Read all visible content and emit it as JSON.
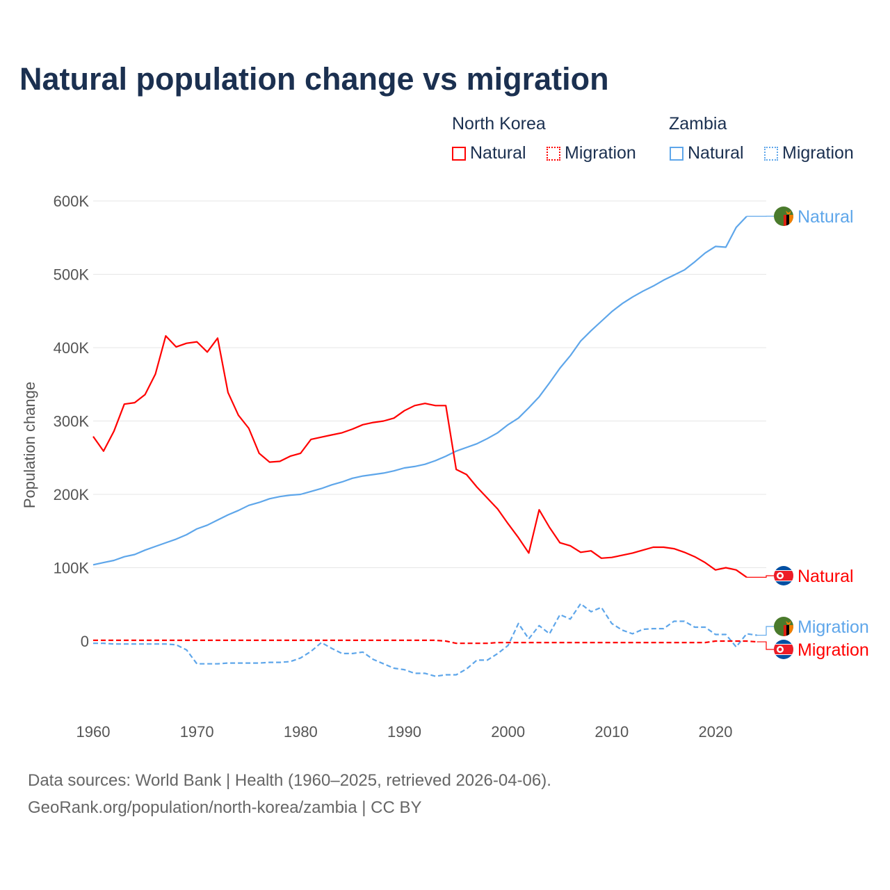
{
  "title": "Natural population change vs migration",
  "legend": {
    "groups": [
      {
        "country": "North Korea",
        "items": [
          "Natural",
          "Migration"
        ],
        "color": "#ff0000"
      },
      {
        "country": "Zambia",
        "items": [
          "Natural",
          "Migration"
        ],
        "color": "#5ea6ea"
      }
    ]
  },
  "footer": {
    "line1": "Data sources: World Bank | Health (1960–2025, retrieved 2026-04-06).",
    "line2": "GeoRank.org/population/north-korea/zambia | CC BY"
  },
  "chart_data": {
    "type": "line",
    "title": "Natural population change vs migration",
    "xlabel": "",
    "ylabel": "Population change",
    "xlim": [
      1960,
      2025
    ],
    "ylim": [
      -95000,
      620000
    ],
    "xticks": [
      1960,
      1970,
      1980,
      1990,
      2000,
      2010,
      2020
    ],
    "xtick_labels": [
      "1960",
      "1970",
      "1980",
      "1990",
      "2000",
      "2010",
      "2020"
    ],
    "yticks": [
      0,
      100000,
      200000,
      300000,
      400000,
      500000,
      600000
    ],
    "ytick_labels": [
      "0",
      "100K",
      "200K",
      "300K",
      "400K",
      "500K",
      "600K"
    ],
    "grid": true,
    "series": [
      {
        "name": "North Korea Natural",
        "label": "Natural",
        "country": "north-korea",
        "dash": "solid",
        "color": "#ff0000",
        "start": 1960,
        "values": [
          279000,
          259000,
          286000,
          323000,
          325000,
          336000,
          364000,
          416000,
          401000,
          406000,
          408000,
          394000,
          413000,
          339000,
          308000,
          290000,
          256000,
          244000,
          245000,
          252000,
          256000,
          275000,
          278000,
          281000,
          284000,
          289000,
          295000,
          298000,
          300000,
          304000,
          314000,
          321000,
          324000,
          321000,
          321000,
          234000,
          227000,
          210000,
          195000,
          180000,
          160000,
          141000,
          120000,
          179000,
          155000,
          134000,
          130000,
          121000,
          123000,
          113000,
          114000,
          117000,
          120000,
          124000,
          128000,
          128000,
          126000,
          121000,
          115000,
          107000,
          97000,
          100000,
          97000,
          87000
        ]
      },
      {
        "name": "North Korea Migration",
        "label": "Migration",
        "country": "north-korea",
        "dash": "dashed",
        "color": "#ff0000",
        "start": 1960,
        "values": [
          1000,
          1000,
          1000,
          1000,
          1000,
          1000,
          1000,
          1000,
          1000,
          1000,
          1000,
          1000,
          1000,
          1000,
          1000,
          1000,
          1000,
          1000,
          1000,
          1000,
          1000,
          1000,
          1000,
          1000,
          1000,
          1000,
          1000,
          1000,
          1000,
          1000,
          1000,
          1000,
          1000,
          1000,
          0,
          -3000,
          -3000,
          -3000,
          -3000,
          -2000,
          -2000,
          -2000,
          -2000,
          -2000,
          -2000,
          -2000,
          -2000,
          -2000,
          -2000,
          -2000,
          -2000,
          -2000,
          -2000,
          -2000,
          -2000,
          -2000,
          -2000,
          -2000,
          -2000,
          -2000,
          0,
          0,
          0,
          0,
          -1000
        ]
      },
      {
        "name": "Zambia Natural",
        "label": "Natural",
        "country": "zambia",
        "dash": "solid",
        "color": "#5ea6ea",
        "start": 1960,
        "values": [
          104000,
          107000,
          110000,
          115000,
          118000,
          124000,
          129000,
          134000,
          139000,
          145000,
          153000,
          158000,
          165000,
          172000,
          178000,
          185000,
          189000,
          194000,
          197000,
          199000,
          200000,
          204000,
          208000,
          213000,
          217000,
          222000,
          225000,
          227000,
          229000,
          232000,
          236000,
          238000,
          241000,
          246000,
          252000,
          259000,
          264000,
          269000,
          276000,
          284000,
          295000,
          304000,
          318000,
          333000,
          352000,
          372000,
          389000,
          409000,
          423000,
          436000,
          449000,
          460000,
          469000,
          477000,
          484000,
          492000,
          499000,
          506000,
          517000,
          529000,
          538000,
          537000,
          564000,
          579000
        ]
      },
      {
        "name": "Zambia Migration",
        "label": "Migration",
        "country": "zambia",
        "dash": "dashed",
        "color": "#5ea6ea",
        "start": 1960,
        "values": [
          -3000,
          -3000,
          -4000,
          -4000,
          -4000,
          -4000,
          -4000,
          -4000,
          -5000,
          -12000,
          -31000,
          -31000,
          -31000,
          -30000,
          -30000,
          -30000,
          -30000,
          -29000,
          -29000,
          -28000,
          -23000,
          -14000,
          -2000,
          -10000,
          -17000,
          -17000,
          -15000,
          -25000,
          -31000,
          -37000,
          -39000,
          -44000,
          -44000,
          -48000,
          -46000,
          -46000,
          -38000,
          -26000,
          -26000,
          -17000,
          -6000,
          24000,
          3000,
          21000,
          10000,
          36000,
          30000,
          51000,
          40000,
          46000,
          24000,
          15000,
          10000,
          16000,
          17000,
          17000,
          27000,
          27000,
          19000,
          19000,
          9000,
          9000,
          -8000,
          10000,
          8000
        ]
      }
    ]
  }
}
